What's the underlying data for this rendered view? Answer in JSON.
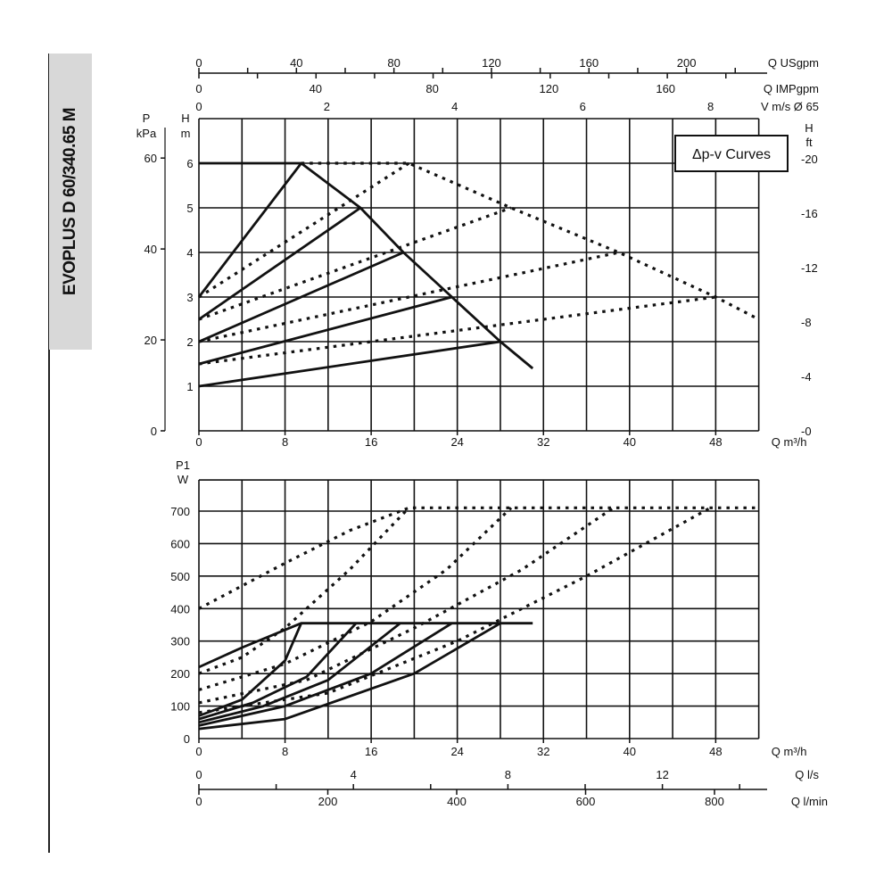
{
  "model_label": "EVOPLUS D 60/340.65 M",
  "chart_data": [
    {
      "type": "line",
      "title": "Δp-v Curves",
      "xlabel": "Q m³/h",
      "ylabel_left": [
        "P",
        "kPa"
      ],
      "ylabel_inner": [
        "H",
        "m"
      ],
      "ylabel_right": [
        "H",
        "ft"
      ],
      "xlim": [
        0,
        52
      ],
      "ylim": [
        0,
        7
      ],
      "grid": true,
      "x_ticks": [
        0,
        8,
        16,
        24,
        32,
        40,
        48
      ],
      "h_ticks": [
        0,
        1,
        2,
        3,
        4,
        5,
        6
      ],
      "kpa_ticks": [
        0,
        20,
        40,
        60
      ],
      "ft_ticks": [
        0,
        4,
        8,
        12,
        16,
        20
      ],
      "top_axes": [
        {
          "label": "Q USgpm",
          "ticks": [
            0,
            40,
            80,
            120,
            160,
            200
          ]
        },
        {
          "label": "Q IMPgpm",
          "ticks": [
            0,
            40,
            80,
            120,
            160
          ]
        },
        {
          "label": "V m/s Ø 65",
          "ticks": [
            0,
            2,
            4,
            6,
            8
          ]
        }
      ],
      "series": [
        {
          "style": "solid",
          "points": [
            [
              0,
              6
            ],
            [
              9.5,
              6
            ],
            [
              15,
              5
            ],
            [
              19,
              4
            ],
            [
              23.5,
              3
            ],
            [
              28,
              2
            ],
            [
              31,
              1.4
            ]
          ]
        },
        {
          "style": "solid",
          "points": [
            [
              0,
              3
            ],
            [
              9.5,
              6
            ]
          ]
        },
        {
          "style": "solid",
          "points": [
            [
              0,
              2.5
            ],
            [
              15,
              5
            ]
          ]
        },
        {
          "style": "solid",
          "points": [
            [
              0,
              2
            ],
            [
              19,
              4
            ]
          ]
        },
        {
          "style": "solid",
          "points": [
            [
              0,
              1.5
            ],
            [
              23.5,
              3
            ]
          ]
        },
        {
          "style": "solid",
          "points": [
            [
              0,
              1
            ],
            [
              28,
              2
            ]
          ]
        },
        {
          "style": "dotted",
          "points": [
            [
              9.5,
              6
            ],
            [
              19.5,
              6
            ],
            [
              29,
              5
            ],
            [
              39,
              4
            ],
            [
              48,
              3
            ],
            [
              52,
              2.5
            ]
          ]
        },
        {
          "style": "dotted",
          "points": [
            [
              0,
              3
            ],
            [
              19.5,
              6
            ]
          ]
        },
        {
          "style": "dotted",
          "points": [
            [
              0,
              2.5
            ],
            [
              29,
              5
            ]
          ]
        },
        {
          "style": "dotted",
          "points": [
            [
              0,
              2
            ],
            [
              39,
              4
            ]
          ]
        },
        {
          "style": "dotted",
          "points": [
            [
              0,
              1.5
            ],
            [
              48,
              3
            ]
          ]
        }
      ]
    },
    {
      "type": "line",
      "xlabel": "Q m³/h",
      "ylabel": [
        "P1",
        "W"
      ],
      "xlim": [
        0,
        52
      ],
      "ylim": [
        0,
        800
      ],
      "grid": true,
      "x_ticks": [
        0,
        8,
        16,
        24,
        32,
        40,
        48
      ],
      "y_ticks": [
        0,
        100,
        200,
        300,
        400,
        500,
        600,
        700
      ],
      "bottom_axes": [
        {
          "label": "Q l/s",
          "ticks": [
            0,
            4,
            8,
            12
          ]
        },
        {
          "label": "Q l/min",
          "ticks": [
            0,
            200,
            400,
            600,
            800
          ]
        }
      ],
      "series": [
        {
          "style": "solid",
          "points": [
            [
              0,
              220
            ],
            [
              4,
              280
            ],
            [
              9.5,
              355
            ],
            [
              31,
              355
            ]
          ]
        },
        {
          "style": "solid",
          "points": [
            [
              0,
              70
            ],
            [
              4,
              120
            ],
            [
              8,
              240
            ],
            [
              9.5,
              355
            ]
          ]
        },
        {
          "style": "solid",
          "points": [
            [
              0,
              60
            ],
            [
              5,
              110
            ],
            [
              10,
              190
            ],
            [
              14.6,
              355
            ]
          ]
        },
        {
          "style": "solid",
          "points": [
            [
              0,
              50
            ],
            [
              6,
              100
            ],
            [
              12,
              180
            ],
            [
              18.7,
              355
            ]
          ]
        },
        {
          "style": "solid",
          "points": [
            [
              0,
              40
            ],
            [
              8,
              100
            ],
            [
              16,
              200
            ],
            [
              23.5,
              355
            ]
          ]
        },
        {
          "style": "solid",
          "points": [
            [
              0,
              30
            ],
            [
              8,
              60
            ],
            [
              20,
              200
            ],
            [
              28,
              355
            ]
          ]
        },
        {
          "style": "dotted",
          "points": [
            [
              0,
              400
            ],
            [
              8,
              540
            ],
            [
              14,
              640
            ],
            [
              19.5,
              710
            ],
            [
              52,
              710
            ]
          ]
        },
        {
          "style": "dotted",
          "points": [
            [
              0,
              200
            ],
            [
              4,
              250
            ],
            [
              8,
              340
            ],
            [
              14,
              520
            ],
            [
              19.5,
              710
            ]
          ]
        },
        {
          "style": "dotted",
          "points": [
            [
              0,
              150
            ],
            [
              8,
              230
            ],
            [
              16,
              360
            ],
            [
              23,
              520
            ],
            [
              29,
              710
            ]
          ]
        },
        {
          "style": "dotted",
          "points": [
            [
              0,
              110
            ],
            [
              10,
              180
            ],
            [
              20,
              340
            ],
            [
              30,
              520
            ],
            [
              38.5,
              710
            ]
          ]
        },
        {
          "style": "dotted",
          "points": [
            [
              0,
              80
            ],
            [
              12,
              140
            ],
            [
              24,
              300
            ],
            [
              36,
              500
            ],
            [
              47.5,
              710
            ]
          ]
        }
      ]
    }
  ]
}
